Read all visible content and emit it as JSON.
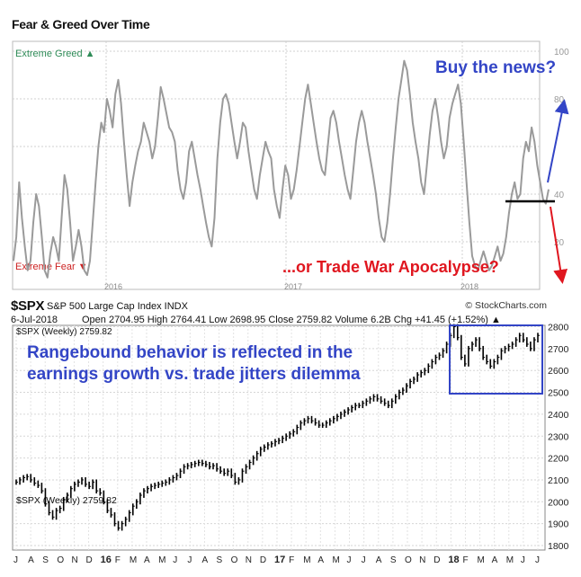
{
  "page_title": "Fear & Greed Over Time",
  "annotations": {
    "buy_news": "Buy the news?",
    "trade_war": "...or Trade War Apocalypse?",
    "rangebound_line1": "Rangebound behavior is reflected in the",
    "rangebound_line2": "earnings growth vs. trade jitters dilemma"
  },
  "spx_header": {
    "symbol": "$SPX",
    "name": "S&P 500 Large Cap Index INDX",
    "date": "6-Jul-2018",
    "stats": "Open 2704.95  High 2764.41  Low 2698.95  Close 2759.82  Volume 6.2B  Chg +41.45 (+1.52%) ▲",
    "legend": "$SPX (Weekly) 2759.82",
    "credit": "© StockCharts.com"
  },
  "colors": {
    "fear_greed_line": "#9a9a9a",
    "spx_bars": "#000000",
    "annotation_blue": "#3345c6",
    "annotation_red": "#e0161f",
    "greed_label": "#2e8b57",
    "fear_label": "#cc2222"
  },
  "chart_data": [
    {
      "type": "line",
      "title": "Fear & Greed Over Time",
      "labels": {
        "top": "Extreme Greed ▲",
        "bottom": "Extreme Fear ▼"
      },
      "ylim": [
        0,
        100
      ],
      "yticks": [
        "100",
        "80",
        "40",
        "20"
      ],
      "xticks": [
        "2016",
        "2017",
        "2018"
      ],
      "grid": true,
      "series": [
        {
          "values": [
            12,
            22,
            45,
            30,
            18,
            8,
            12,
            28,
            40,
            35,
            22,
            8,
            5,
            15,
            22,
            18,
            12,
            30,
            48,
            42,
            28,
            12,
            18,
            25,
            18,
            8,
            6,
            12,
            28,
            45,
            60,
            70,
            66,
            80,
            75,
            68,
            82,
            88,
            78,
            62,
            48,
            35,
            45,
            52,
            58,
            62,
            70,
            66,
            62,
            55,
            60,
            72,
            85,
            80,
            74,
            68,
            66,
            62,
            50,
            42,
            38,
            45,
            58,
            62,
            55,
            48,
            42,
            35,
            28,
            22,
            18,
            30,
            55,
            70,
            80,
            82,
            78,
            70,
            62,
            55,
            62,
            70,
            68,
            58,
            50,
            42,
            38,
            48,
            55,
            62,
            58,
            55,
            42,
            35,
            30,
            42,
            52,
            48,
            38,
            42,
            50,
            60,
            70,
            80,
            86,
            78,
            70,
            62,
            55,
            50,
            48,
            60,
            72,
            75,
            70,
            62,
            55,
            48,
            42,
            38,
            50,
            62,
            70,
            75,
            70,
            62,
            55,
            48,
            40,
            30,
            22,
            20,
            28,
            40,
            55,
            68,
            80,
            88,
            96,
            92,
            82,
            70,
            62,
            55,
            45,
            40,
            52,
            65,
            75,
            80,
            72,
            62,
            55,
            60,
            72,
            78,
            82,
            86,
            78,
            62,
            45,
            28,
            14,
            10,
            8,
            12,
            16,
            12,
            8,
            10,
            14,
            18,
            12,
            15,
            22,
            32,
            40,
            45,
            38,
            40,
            55,
            62,
            58,
            68,
            62,
            52,
            45,
            38,
            36,
            42
          ]
        }
      ]
    },
    {
      "type": "bar",
      "title": "$SPX (Weekly) 2759.82",
      "ylim": [
        1780,
        2820
      ],
      "yticks": [
        2800,
        2700,
        2600,
        2500,
        2400,
        2300,
        2200,
        2100,
        2000,
        1900,
        1800
      ],
      "xticks": [
        "J",
        "A",
        "S",
        "O",
        "N",
        "D",
        "16",
        "F",
        "M",
        "A",
        "M",
        "J",
        "J",
        "A",
        "S",
        "O",
        "N",
        "D",
        "17",
        "F",
        "M",
        "A",
        "M",
        "J",
        "J",
        "A",
        "S",
        "O",
        "N",
        "D",
        "18",
        "F",
        "M",
        "A",
        "M",
        "J",
        "J"
      ],
      "grid": true,
      "series": [
        {
          "values": [
            2090,
            2100,
            2110,
            2115,
            2100,
            2085,
            2075,
            2050,
            1990,
            1950,
            1930,
            1960,
            1970,
            2010,
            2030,
            2060,
            2080,
            2090,
            2100,
            2080,
            2070,
            2090,
            2050,
            2040,
            2000,
            1960,
            1940,
            1900,
            1880,
            1900,
            1920,
            1950,
            1980,
            2000,
            2030,
            2050,
            2060,
            2070,
            2075,
            2080,
            2085,
            2090,
            2100,
            2110,
            2120,
            2140,
            2160,
            2165,
            2170,
            2175,
            2180,
            2175,
            2170,
            2160,
            2165,
            2150,
            2140,
            2130,
            2140,
            2120,
            2090,
            2100,
            2140,
            2160,
            2180,
            2200,
            2220,
            2240,
            2250,
            2260,
            2265,
            2275,
            2280,
            2290,
            2300,
            2310,
            2320,
            2340,
            2360,
            2370,
            2380,
            2370,
            2360,
            2350,
            2350,
            2360,
            2370,
            2380,
            2390,
            2400,
            2410,
            2420,
            2430,
            2440,
            2440,
            2450,
            2460,
            2470,
            2480,
            2470,
            2460,
            2450,
            2440,
            2460,
            2480,
            2500,
            2510,
            2530,
            2550,
            2560,
            2580,
            2590,
            2600,
            2620,
            2640,
            2660,
            2670,
            2690,
            2720,
            2760,
            2800,
            2750,
            2660,
            2630,
            2700,
            2720,
            2740,
            2700,
            2660,
            2640,
            2620,
            2640,
            2660,
            2690,
            2700,
            2710,
            2720,
            2740,
            2760,
            2740,
            2720,
            2700,
            2740,
            2760
          ]
        }
      ]
    }
  ]
}
